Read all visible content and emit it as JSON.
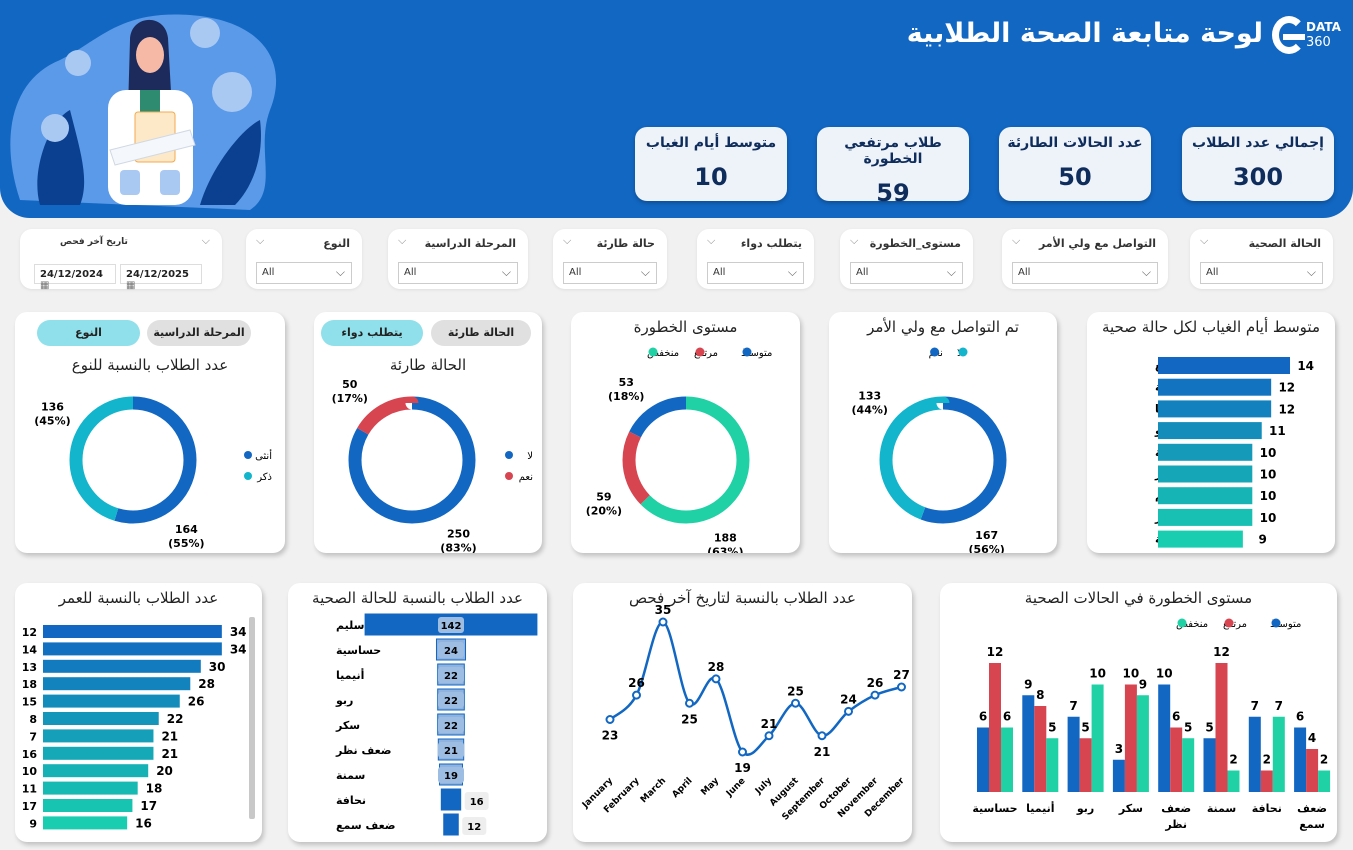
{
  "header": {
    "title": "لوحة متابعة الصحة الطلابية",
    "logo_text": "DATA",
    "logo_sub": "360"
  },
  "kpis": [
    {
      "label": "إجمالي عدد الطلاب",
      "value": "300"
    },
    {
      "label": "عدد الحالات الطارئة",
      "value": "50"
    },
    {
      "label": "طلاب مرتفعي الخطورة",
      "value": "59"
    },
    {
      "label": "متوسط أيام الغياب",
      "value": "10"
    }
  ],
  "filters": {
    "date": {
      "label": "تاريخ آخر فحص",
      "from": "24/12/2024",
      "to": "24/12/2025"
    },
    "slicers": [
      {
        "label": "النوع",
        "value": "All"
      },
      {
        "label": "المرحلة الدراسية",
        "value": "All"
      },
      {
        "label": "حالة طارئة",
        "value": "All"
      },
      {
        "label": "يتطلب دواء",
        "value": "All"
      },
      {
        "label": "مستوى_الخطورة",
        "value": "All"
      },
      {
        "label": "التواصل مع ولي الأمر",
        "value": "All"
      },
      {
        "label": "الحالة الصحية",
        "value": "All"
      }
    ]
  },
  "toggles": {
    "gender_card": [
      {
        "label": "المرحلة الدراسية",
        "active": false
      },
      {
        "label": "النوع",
        "active": true
      }
    ],
    "emergency_card": [
      {
        "label": "الحالة طارئة",
        "active": false
      },
      {
        "label": "يتطلب دواء",
        "active": true
      }
    ]
  },
  "colors": {
    "header": "#1167c2",
    "blue": "#1167c2",
    "cyan": "#12b5cb",
    "red": "#d64550",
    "green": "#1fd1a4"
  },
  "chart_data": [
    {
      "id": "gender",
      "type": "pie",
      "title": "عدد الطلاب بالنسبة للنوع",
      "legend": "right",
      "slices": [
        {
          "label": "أنثى",
          "value": 164,
          "pct": "55%",
          "color": "#1167c2"
        },
        {
          "label": "ذكر",
          "value": 136,
          "pct": "45%",
          "color": "#12b5cb"
        }
      ]
    },
    {
      "id": "emergency",
      "type": "pie",
      "title": "الحالة طارئة",
      "legend": "right",
      "slices": [
        {
          "label": "لا",
          "value": 250,
          "pct": "83%",
          "color": "#1167c2"
        },
        {
          "label": "نعم",
          "value": 50,
          "pct": "17%",
          "color": "#d64550"
        }
      ]
    },
    {
      "id": "risk",
      "type": "pie",
      "title": "مستوى الخطورة",
      "legend": "top",
      "legend_order": [
        "متوسط",
        "مرتفع",
        "منخفض"
      ],
      "slices": [
        {
          "label": "منخفض",
          "value": 188,
          "pct": "63%",
          "color": "#1fd1a4"
        },
        {
          "label": "مرتفع",
          "value": 59,
          "pct": "20%",
          "color": "#d64550"
        },
        {
          "label": "متوسط",
          "value": 53,
          "pct": "18%",
          "color": "#1167c2"
        }
      ]
    },
    {
      "id": "guardian",
      "type": "pie",
      "title": "تم التواصل مع ولي الأمر",
      "legend": "top",
      "legend_order": [
        "لا",
        "نعم"
      ],
      "slices": [
        {
          "label": "نعم",
          "value": 167,
          "pct": "56%",
          "color": "#1167c2"
        },
        {
          "label": "لا",
          "value": 133,
          "pct": "44%",
          "color": "#12b5cb"
        }
      ]
    },
    {
      "id": "absence",
      "type": "bar",
      "orientation": "horizontal",
      "title": "متوسط أيام الغياب لكل حالة صحية",
      "categories": [
        "ضعف سمع",
        "نحافة",
        "أنيميا",
        "ربو",
        "حساسية",
        "سكر",
        "سليم",
        "ضعف نظر",
        "سمنة"
      ],
      "values": [
        14,
        12,
        12,
        11,
        10,
        10,
        10,
        10,
        9
      ]
    },
    {
      "id": "age",
      "type": "bar",
      "orientation": "horizontal",
      "title": "عدد الطلاب بالنسبة للعمر",
      "categories": [
        "12",
        "14",
        "13",
        "18",
        "15",
        "8",
        "7",
        "16",
        "10",
        "11",
        "17",
        "9"
      ],
      "values": [
        34,
        34,
        30,
        28,
        26,
        22,
        21,
        21,
        20,
        18,
        17,
        16
      ]
    },
    {
      "id": "health",
      "type": "bar",
      "orientation": "funnel",
      "title": "عدد الطلاب بالنسبة للحالة الصحية",
      "categories": [
        "سليم",
        "حساسية",
        "أنيميا",
        "ربو",
        "سكر",
        "ضعف نظر",
        "سمنة",
        "نحافة",
        "ضعف سمع"
      ],
      "values": [
        142,
        24,
        22,
        22,
        22,
        21,
        19,
        16,
        12
      ]
    },
    {
      "id": "monthly",
      "type": "line",
      "title": "عدد الطلاب بالنسبة لتاريخ آخر فحص",
      "categories": [
        "January",
        "February",
        "March",
        "April",
        "May",
        "June",
        "July",
        "August",
        "September",
        "October",
        "November",
        "December"
      ],
      "values": [
        23,
        26,
        35,
        25,
        28,
        19,
        21,
        25,
        21,
        24,
        26,
        27
      ]
    },
    {
      "id": "risk_by_condition",
      "type": "bar",
      "title": "مستوى الخطورة في الحالات الصحية",
      "legend": "top",
      "categories": [
        "حساسية",
        "أنيميا",
        "ربو",
        "سكر",
        "ضعف نظر",
        "سمنة",
        "نحافة",
        "ضعف سمع"
      ],
      "series": [
        {
          "name": "متوسط",
          "color": "#1167c2",
          "values": [
            6,
            9,
            7,
            3,
            10,
            5,
            7,
            6
          ]
        },
        {
          "name": "مرتفع",
          "color": "#d64550",
          "values": [
            12,
            8,
            5,
            10,
            6,
            12,
            2,
            4
          ]
        },
        {
          "name": "منخفض",
          "color": "#1fd1a4",
          "values": [
            6,
            5,
            10,
            9,
            5,
            2,
            7,
            2
          ]
        }
      ]
    }
  ]
}
